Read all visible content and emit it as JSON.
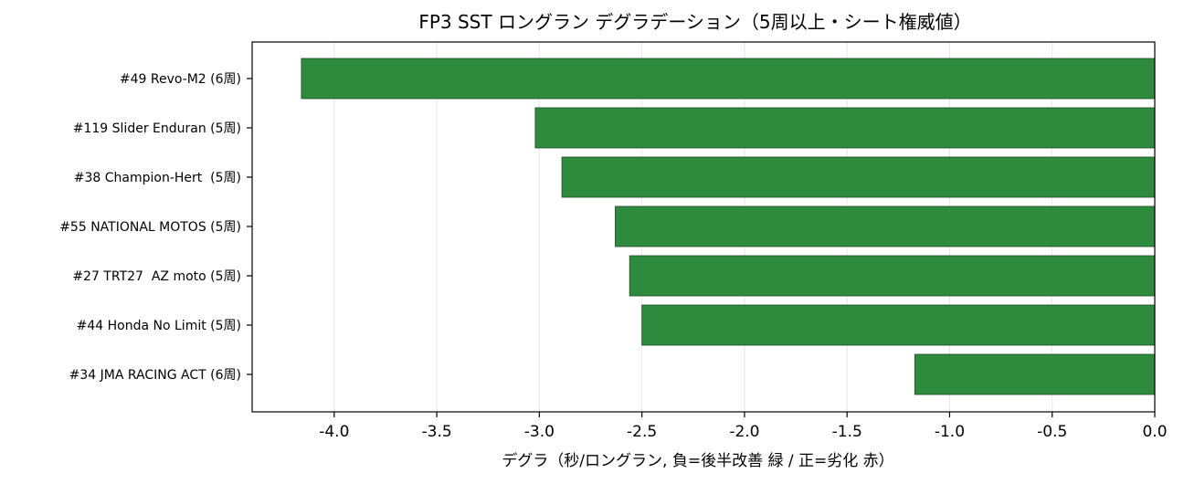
{
  "chart_data": {
    "type": "bar",
    "orientation": "horizontal",
    "title": "FP3 SST ロングラン デグラデーション（5周以上・シート権威値）",
    "xlabel": "デグラ（秒/ロングラン, 負=後半改善 緑 / 正=劣化 赤）",
    "ylabel": "",
    "xlim": [
      -4.4,
      0.0
    ],
    "xticks": [
      -4.0,
      -3.5,
      -3.0,
      -2.5,
      -2.0,
      -1.5,
      -1.0,
      -0.5,
      0.0
    ],
    "xtick_labels": [
      "-4.0",
      "-3.5",
      "-3.0",
      "-2.5",
      "-2.0",
      "-1.5",
      "-1.0",
      "-0.5",
      "0.0"
    ],
    "grid": "x",
    "categories": [
      "#49 Revo-M2 (6周)",
      "#119 Slider Enduran (5周)",
      "#38 Champion-Hert  (5周)",
      "#55 NATIONAL MOTOS (5周)",
      "#27 TRT27  AZ moto (5周)",
      "#44 Honda No Limit (5周)",
      "#34 JMA RACING ACT (6周)"
    ],
    "values": [
      -4.16,
      -3.02,
      -2.89,
      -2.63,
      -2.56,
      -2.5,
      -1.17
    ],
    "colors": {
      "negative": "#2e8b3e",
      "positive": "#d62728"
    }
  }
}
